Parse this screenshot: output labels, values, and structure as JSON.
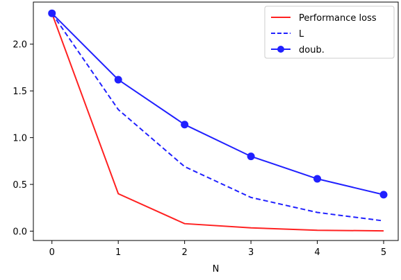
{
  "chart_data": {
    "type": "line",
    "x": [
      0,
      1,
      2,
      3,
      4,
      5
    ],
    "xlabel": "N",
    "ylabel": "",
    "title": "",
    "xlim": [
      -0.28,
      5.22
    ],
    "ylim": [
      -0.1,
      2.45
    ],
    "xticks": [
      "0",
      "1",
      "2",
      "3",
      "4",
      "5"
    ],
    "yticks": [
      "0.0",
      "0.5",
      "1.0",
      "1.5",
      "2.0"
    ],
    "ytick_values": [
      0.0,
      0.5,
      1.0,
      1.5,
      2.0
    ],
    "grid": false,
    "legend_position": "top-right",
    "series": [
      {
        "name": "Performance loss",
        "values": [
          2.33,
          0.4,
          0.08,
          0.035,
          0.01,
          0.003
        ],
        "color": "#ff2020",
        "style": "solid",
        "marker": "none"
      },
      {
        "name": "L",
        "values": [
          2.33,
          1.3,
          0.69,
          0.36,
          0.2,
          0.11
        ],
        "color": "#2020ff",
        "style": "dashed",
        "marker": "none"
      },
      {
        "name": "doub.",
        "values": [
          2.33,
          1.62,
          1.14,
          0.8,
          0.56,
          0.39
        ],
        "color": "#2020ff",
        "style": "solid",
        "marker": "circle"
      }
    ]
  }
}
